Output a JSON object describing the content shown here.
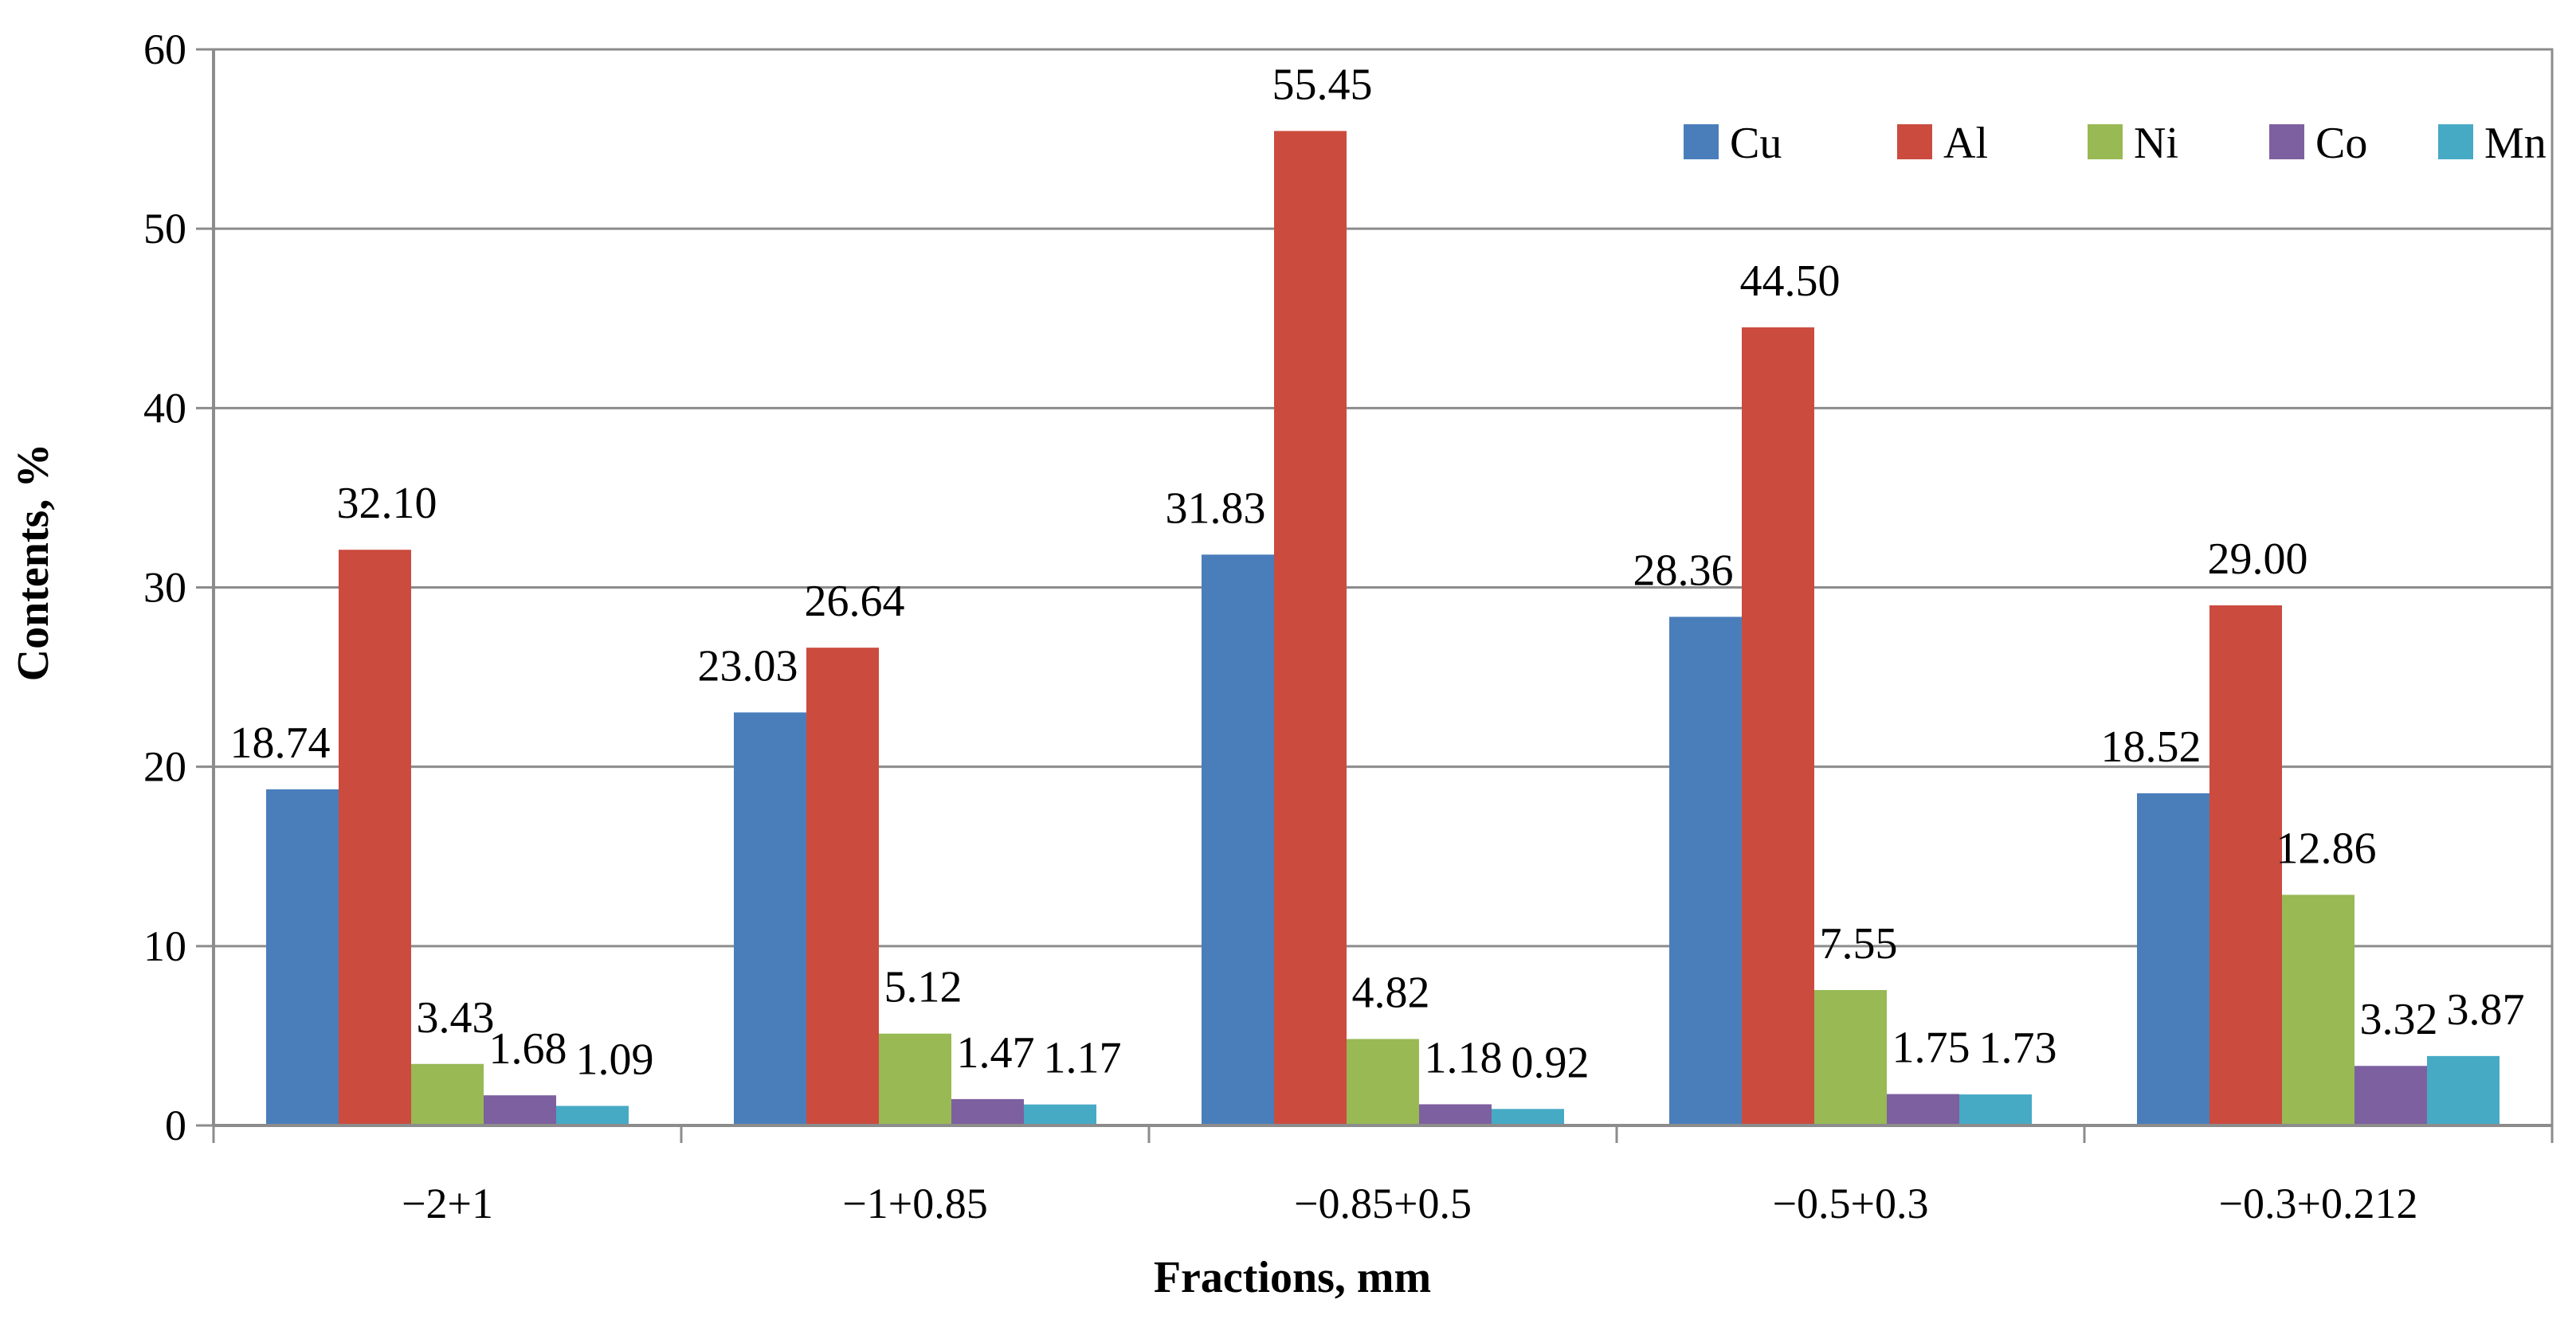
{
  "chart_data": {
    "type": "bar",
    "title": "",
    "xlabel": "Fractions, mm",
    "ylabel": "Contents, %",
    "categories": [
      "−2+1",
      "−1+0.85",
      "−0.85+0.5",
      "−0.5+0.3",
      "−0.3+0.212"
    ],
    "ylim": [
      0,
      60
    ],
    "yticks": [
      0,
      10,
      20,
      30,
      40,
      50,
      60
    ],
    "grid": true,
    "legend_position": "top-right",
    "series": [
      {
        "name": "Cu",
        "color": "#4a7ebb",
        "values": [
          18.74,
          23.03,
          31.83,
          28.36,
          18.52
        ],
        "labels": [
          "18.74",
          "23.03",
          "31.83",
          "28.36",
          "18.52"
        ]
      },
      {
        "name": "Al",
        "color": "#cb4b3f",
        "values": [
          32.1,
          26.64,
          55.45,
          44.5,
          29.0
        ],
        "labels": [
          "32.10",
          "26.64",
          "55.45",
          "44.50",
          "29.00"
        ]
      },
      {
        "name": "Ni",
        "color": "#98b954",
        "values": [
          3.43,
          5.12,
          4.82,
          7.55,
          12.86
        ],
        "labels": [
          "3.43",
          "5.12",
          "4.82",
          "7.55",
          "12.86"
        ]
      },
      {
        "name": "Co",
        "color": "#7d60a0",
        "values": [
          1.68,
          1.47,
          1.18,
          1.75,
          3.32
        ],
        "labels": [
          "1.68",
          "1.47",
          "1.18",
          "1.75",
          "3.32"
        ]
      },
      {
        "name": "Mn",
        "color": "#46aac5",
        "values": [
          1.09,
          1.17,
          0.92,
          1.73,
          3.87
        ],
        "labels": [
          "1.09",
          "1.17",
          "0.92",
          "1.73",
          "3.87"
        ]
      }
    ]
  }
}
